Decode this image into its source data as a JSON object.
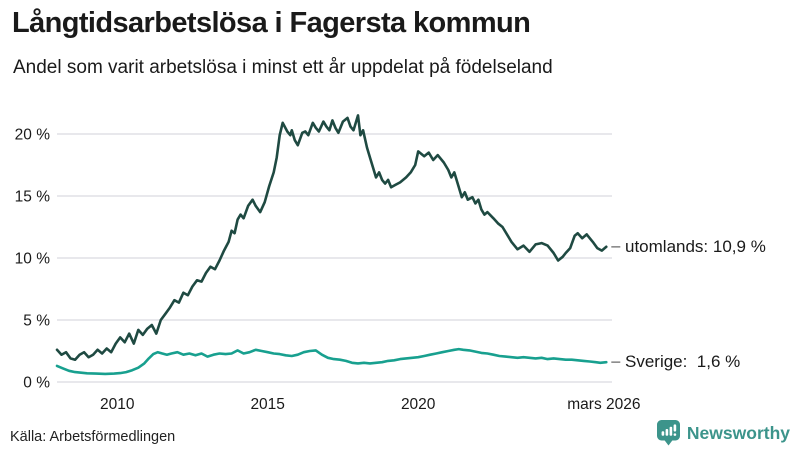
{
  "header": {
    "title": "Långtidsarbetslösa i Fagersta kommun",
    "subtitle": "Andel som varit arbetslösa i minst ett år uppdelat på födelseland"
  },
  "footer": {
    "source": "Källa: Arbetsförmedlingen",
    "brand": "Newsworthy"
  },
  "colors": {
    "utomlands": "#1f4a42",
    "sverige": "#18a08f",
    "grid": "#e8e8ec",
    "connector": "#8a8a8a",
    "text": "#1a1a1a",
    "brand_teal": "#3c948b"
  },
  "chart_data": {
    "type": "line",
    "title": "Långtidsarbetslösa i Fagersta kommun",
    "subtitle": "Andel som varit arbetslösa i minst ett år uppdelat på födelseland",
    "unit": "%",
    "grid": true,
    "legend_position": "right-of-line-ends",
    "x_axis": {
      "range": [
        2008,
        2026.25
      ],
      "ticks": [
        {
          "label": "2010",
          "year": 2010
        },
        {
          "label": "2015",
          "year": 2015
        },
        {
          "label": "2020",
          "year": 2020
        },
        {
          "label": "mars 2026",
          "year": 2026.17
        }
      ]
    },
    "y_axis": {
      "range": [
        0,
        22
      ],
      "ticks": [
        {
          "label": "0 %",
          "value": 0
        },
        {
          "label": "5 %",
          "value": 5
        },
        {
          "label": "10 %",
          "value": 10
        },
        {
          "label": "15 %",
          "value": 15
        },
        {
          "label": "20 %",
          "value": 20
        }
      ]
    },
    "series": [
      {
        "name": "utomlands",
        "label": "utomlands: 10,9 %",
        "latest_value": 10.9,
        "color": "#1f4a42",
        "points": [
          [
            2008.0,
            2.6
          ],
          [
            2008.15,
            2.2
          ],
          [
            2008.3,
            2.4
          ],
          [
            2008.45,
            1.9
          ],
          [
            2008.6,
            1.8
          ],
          [
            2008.75,
            2.2
          ],
          [
            2008.9,
            2.4
          ],
          [
            2009.05,
            2.0
          ],
          [
            2009.2,
            2.2
          ],
          [
            2009.35,
            2.6
          ],
          [
            2009.5,
            2.3
          ],
          [
            2009.65,
            2.7
          ],
          [
            2009.8,
            2.4
          ],
          [
            2009.95,
            3.1
          ],
          [
            2010.1,
            3.6
          ],
          [
            2010.25,
            3.2
          ],
          [
            2010.4,
            3.9
          ],
          [
            2010.55,
            3.1
          ],
          [
            2010.7,
            4.2
          ],
          [
            2010.85,
            3.8
          ],
          [
            2011.0,
            4.3
          ],
          [
            2011.15,
            4.6
          ],
          [
            2011.3,
            3.9
          ],
          [
            2011.45,
            5.0
          ],
          [
            2011.6,
            5.5
          ],
          [
            2011.75,
            6.0
          ],
          [
            2011.9,
            6.6
          ],
          [
            2012.05,
            6.4
          ],
          [
            2012.2,
            7.2
          ],
          [
            2012.35,
            7.0
          ],
          [
            2012.5,
            7.7
          ],
          [
            2012.65,
            8.2
          ],
          [
            2012.8,
            8.1
          ],
          [
            2012.95,
            8.8
          ],
          [
            2013.1,
            9.3
          ],
          [
            2013.25,
            9.1
          ],
          [
            2013.4,
            9.8
          ],
          [
            2013.55,
            10.6
          ],
          [
            2013.7,
            11.3
          ],
          [
            2013.8,
            12.2
          ],
          [
            2013.9,
            12.0
          ],
          [
            2014.0,
            13.1
          ],
          [
            2014.1,
            13.5
          ],
          [
            2014.2,
            13.2
          ],
          [
            2014.35,
            14.2
          ],
          [
            2014.5,
            14.7
          ],
          [
            2014.6,
            14.2
          ],
          [
            2014.75,
            13.7
          ],
          [
            2014.9,
            14.5
          ],
          [
            2015.05,
            15.8
          ],
          [
            2015.2,
            16.9
          ],
          [
            2015.3,
            18.1
          ],
          [
            2015.4,
            19.9
          ],
          [
            2015.5,
            20.9
          ],
          [
            2015.65,
            20.2
          ],
          [
            2015.75,
            19.9
          ],
          [
            2015.8,
            20.3
          ],
          [
            2015.9,
            19.5
          ],
          [
            2016.0,
            19.1
          ],
          [
            2016.15,
            20.1
          ],
          [
            2016.25,
            20.2
          ],
          [
            2016.35,
            19.9
          ],
          [
            2016.5,
            20.9
          ],
          [
            2016.6,
            20.5
          ],
          [
            2016.7,
            20.2
          ],
          [
            2016.85,
            21.0
          ],
          [
            2016.95,
            20.6
          ],
          [
            2017.05,
            20.3
          ],
          [
            2017.15,
            21.1
          ],
          [
            2017.25,
            20.5
          ],
          [
            2017.35,
            20.1
          ],
          [
            2017.5,
            21.0
          ],
          [
            2017.65,
            21.3
          ],
          [
            2017.75,
            20.6
          ],
          [
            2017.85,
            20.3
          ],
          [
            2018.0,
            21.5
          ],
          [
            2018.08,
            19.9
          ],
          [
            2018.17,
            20.3
          ],
          [
            2018.3,
            18.9
          ],
          [
            2018.4,
            18.1
          ],
          [
            2018.5,
            17.3
          ],
          [
            2018.6,
            16.5
          ],
          [
            2018.7,
            16.9
          ],
          [
            2018.8,
            16.3
          ],
          [
            2018.9,
            16.0
          ],
          [
            2019.0,
            16.3
          ],
          [
            2019.1,
            15.7
          ],
          [
            2019.25,
            15.9
          ],
          [
            2019.4,
            16.1
          ],
          [
            2019.6,
            16.5
          ],
          [
            2019.75,
            16.9
          ],
          [
            2019.9,
            17.5
          ],
          [
            2020.0,
            18.6
          ],
          [
            2020.2,
            18.2
          ],
          [
            2020.35,
            18.5
          ],
          [
            2020.5,
            17.9
          ],
          [
            2020.65,
            18.3
          ],
          [
            2020.85,
            17.7
          ],
          [
            2021.0,
            17.1
          ],
          [
            2021.1,
            16.5
          ],
          [
            2021.2,
            16.9
          ],
          [
            2021.35,
            15.7
          ],
          [
            2021.45,
            14.9
          ],
          [
            2021.55,
            15.3
          ],
          [
            2021.65,
            14.7
          ],
          [
            2021.8,
            14.9
          ],
          [
            2021.9,
            14.4
          ],
          [
            2022.0,
            14.7
          ],
          [
            2022.1,
            13.9
          ],
          [
            2022.2,
            13.5
          ],
          [
            2022.3,
            13.7
          ],
          [
            2022.5,
            13.2
          ],
          [
            2022.65,
            12.8
          ],
          [
            2022.8,
            12.5
          ],
          [
            2022.95,
            11.9
          ],
          [
            2023.1,
            11.3
          ],
          [
            2023.3,
            10.7
          ],
          [
            2023.5,
            11.0
          ],
          [
            2023.7,
            10.5
          ],
          [
            2023.9,
            11.1
          ],
          [
            2024.1,
            11.2
          ],
          [
            2024.3,
            11.0
          ],
          [
            2024.5,
            10.4
          ],
          [
            2024.65,
            9.8
          ],
          [
            2024.8,
            10.1
          ],
          [
            2024.9,
            10.4
          ],
          [
            2025.05,
            10.8
          ],
          [
            2025.2,
            11.8
          ],
          [
            2025.3,
            12.0
          ],
          [
            2025.45,
            11.6
          ],
          [
            2025.6,
            11.9
          ],
          [
            2025.8,
            11.3
          ],
          [
            2025.95,
            10.8
          ],
          [
            2026.1,
            10.6
          ],
          [
            2026.25,
            10.9
          ]
        ]
      },
      {
        "name": "Sverige",
        "label": "Sverige:  1,6 %",
        "latest_value": 1.6,
        "color": "#18a08f",
        "points": [
          [
            2008.0,
            1.3
          ],
          [
            2008.2,
            1.1
          ],
          [
            2008.4,
            0.9
          ],
          [
            2008.6,
            0.8
          ],
          [
            2008.8,
            0.75
          ],
          [
            2009.0,
            0.7
          ],
          [
            2009.3,
            0.68
          ],
          [
            2009.6,
            0.65
          ],
          [
            2009.9,
            0.68
          ],
          [
            2010.1,
            0.72
          ],
          [
            2010.3,
            0.8
          ],
          [
            2010.5,
            0.95
          ],
          [
            2010.7,
            1.15
          ],
          [
            2010.9,
            1.5
          ],
          [
            2011.05,
            1.9
          ],
          [
            2011.2,
            2.25
          ],
          [
            2011.35,
            2.4
          ],
          [
            2011.5,
            2.3
          ],
          [
            2011.65,
            2.2
          ],
          [
            2011.8,
            2.3
          ],
          [
            2012.0,
            2.4
          ],
          [
            2012.2,
            2.2
          ],
          [
            2012.4,
            2.3
          ],
          [
            2012.6,
            2.15
          ],
          [
            2012.8,
            2.3
          ],
          [
            2013.0,
            2.05
          ],
          [
            2013.2,
            2.2
          ],
          [
            2013.4,
            2.3
          ],
          [
            2013.6,
            2.25
          ],
          [
            2013.8,
            2.3
          ],
          [
            2014.0,
            2.55
          ],
          [
            2014.2,
            2.3
          ],
          [
            2014.4,
            2.4
          ],
          [
            2014.6,
            2.6
          ],
          [
            2014.8,
            2.5
          ],
          [
            2015.0,
            2.4
          ],
          [
            2015.2,
            2.3
          ],
          [
            2015.4,
            2.25
          ],
          [
            2015.6,
            2.15
          ],
          [
            2015.8,
            2.1
          ],
          [
            2016.0,
            2.2
          ],
          [
            2016.2,
            2.4
          ],
          [
            2016.4,
            2.5
          ],
          [
            2016.6,
            2.55
          ],
          [
            2016.8,
            2.2
          ],
          [
            2017.0,
            1.95
          ],
          [
            2017.2,
            1.85
          ],
          [
            2017.4,
            1.8
          ],
          [
            2017.6,
            1.7
          ],
          [
            2017.8,
            1.55
          ],
          [
            2018.0,
            1.5
          ],
          [
            2018.2,
            1.55
          ],
          [
            2018.4,
            1.5
          ],
          [
            2018.6,
            1.55
          ],
          [
            2018.8,
            1.6
          ],
          [
            2019.0,
            1.7
          ],
          [
            2019.2,
            1.75
          ],
          [
            2019.4,
            1.85
          ],
          [
            2019.6,
            1.9
          ],
          [
            2019.8,
            1.95
          ],
          [
            2020.0,
            2.0
          ],
          [
            2020.2,
            2.1
          ],
          [
            2020.4,
            2.2
          ],
          [
            2020.6,
            2.3
          ],
          [
            2020.8,
            2.4
          ],
          [
            2021.0,
            2.5
          ],
          [
            2021.2,
            2.6
          ],
          [
            2021.35,
            2.65
          ],
          [
            2021.5,
            2.6
          ],
          [
            2021.7,
            2.55
          ],
          [
            2021.9,
            2.45
          ],
          [
            2022.1,
            2.35
          ],
          [
            2022.3,
            2.3
          ],
          [
            2022.5,
            2.2
          ],
          [
            2022.7,
            2.1
          ],
          [
            2022.9,
            2.05
          ],
          [
            2023.1,
            2.0
          ],
          [
            2023.3,
            1.95
          ],
          [
            2023.5,
            2.0
          ],
          [
            2023.7,
            1.95
          ],
          [
            2023.9,
            1.9
          ],
          [
            2024.1,
            1.95
          ],
          [
            2024.3,
            1.85
          ],
          [
            2024.5,
            1.9
          ],
          [
            2024.7,
            1.85
          ],
          [
            2024.9,
            1.8
          ],
          [
            2025.1,
            1.8
          ],
          [
            2025.3,
            1.75
          ],
          [
            2025.5,
            1.7
          ],
          [
            2025.7,
            1.65
          ],
          [
            2025.9,
            1.6
          ],
          [
            2026.05,
            1.55
          ],
          [
            2026.25,
            1.6
          ]
        ]
      }
    ]
  }
}
